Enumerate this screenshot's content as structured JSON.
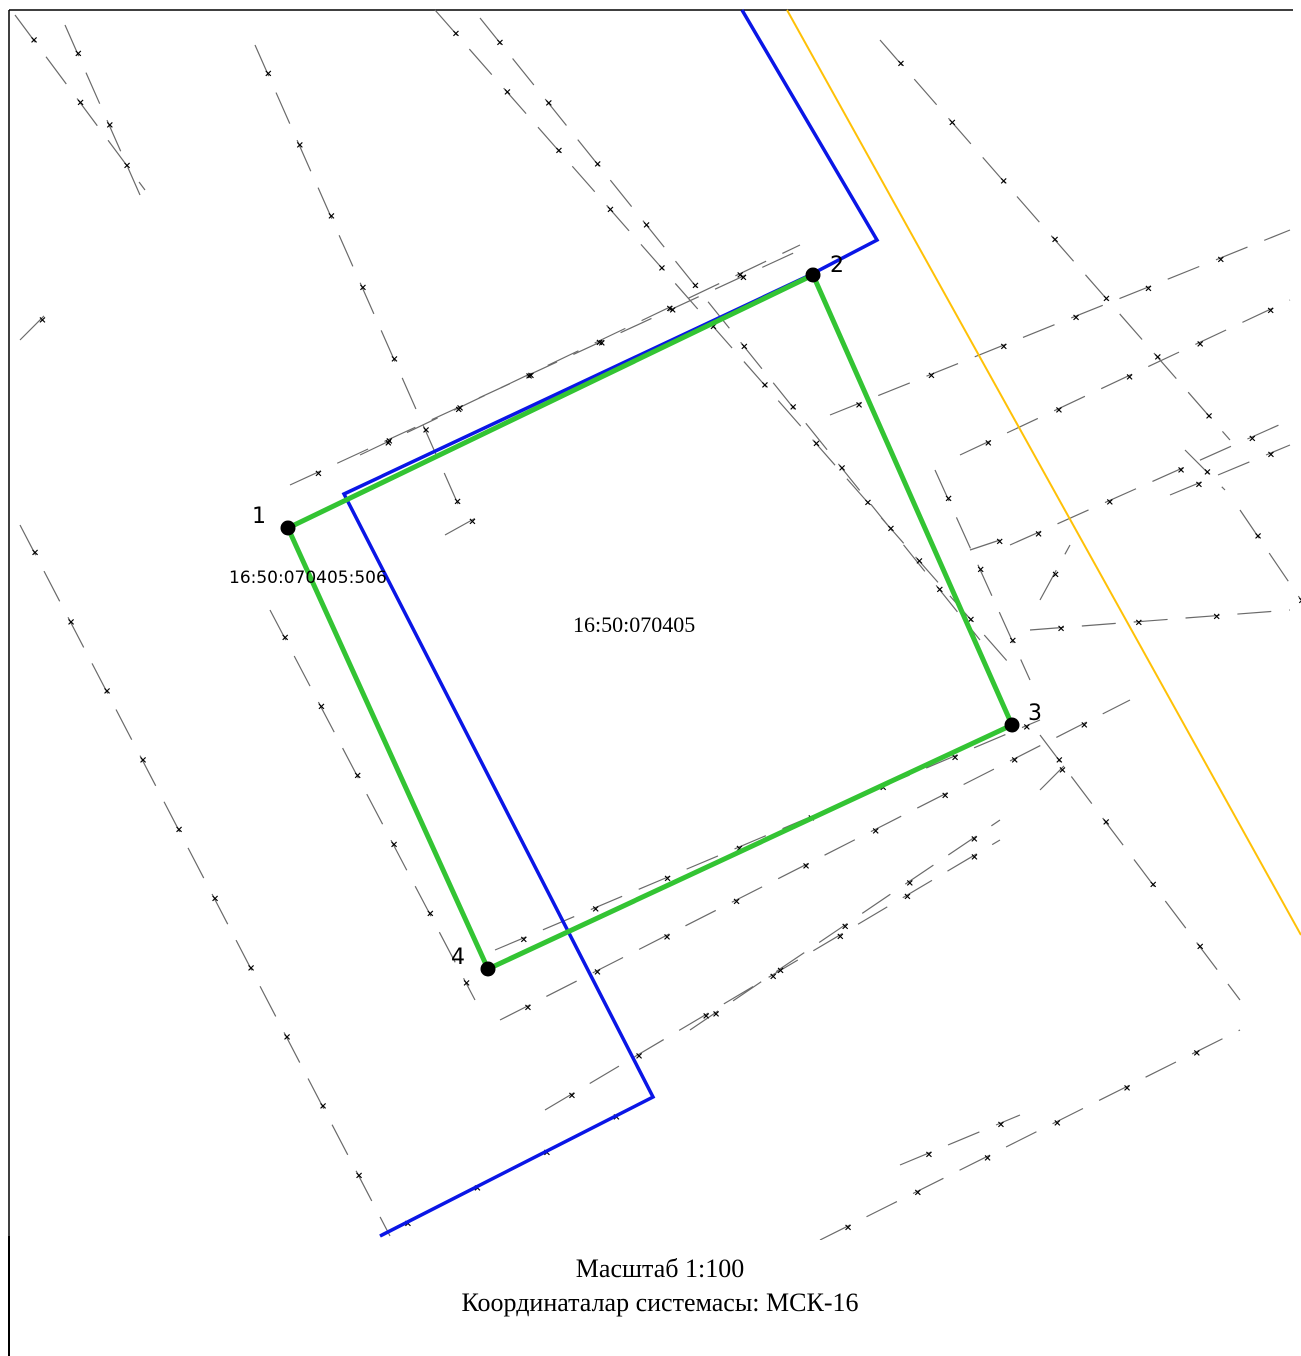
{
  "map": {
    "parcel_number": "16:50:070405:506",
    "block_number": "16:50:070405",
    "points": [
      {
        "label": "1"
      },
      {
        "label": "2"
      },
      {
        "label": "3"
      },
      {
        "label": "4"
      }
    ],
    "colors": {
      "new_boundary": "#33c433",
      "existing_boundary": "#0a16e6",
      "block_line": "#ffc107",
      "dash_lines": "#6a6a6a",
      "vertex": "#000000"
    }
  },
  "caption": {
    "scale": "Масштаб 1:100",
    "crs": "Координаталар системасы: МСК-16"
  }
}
